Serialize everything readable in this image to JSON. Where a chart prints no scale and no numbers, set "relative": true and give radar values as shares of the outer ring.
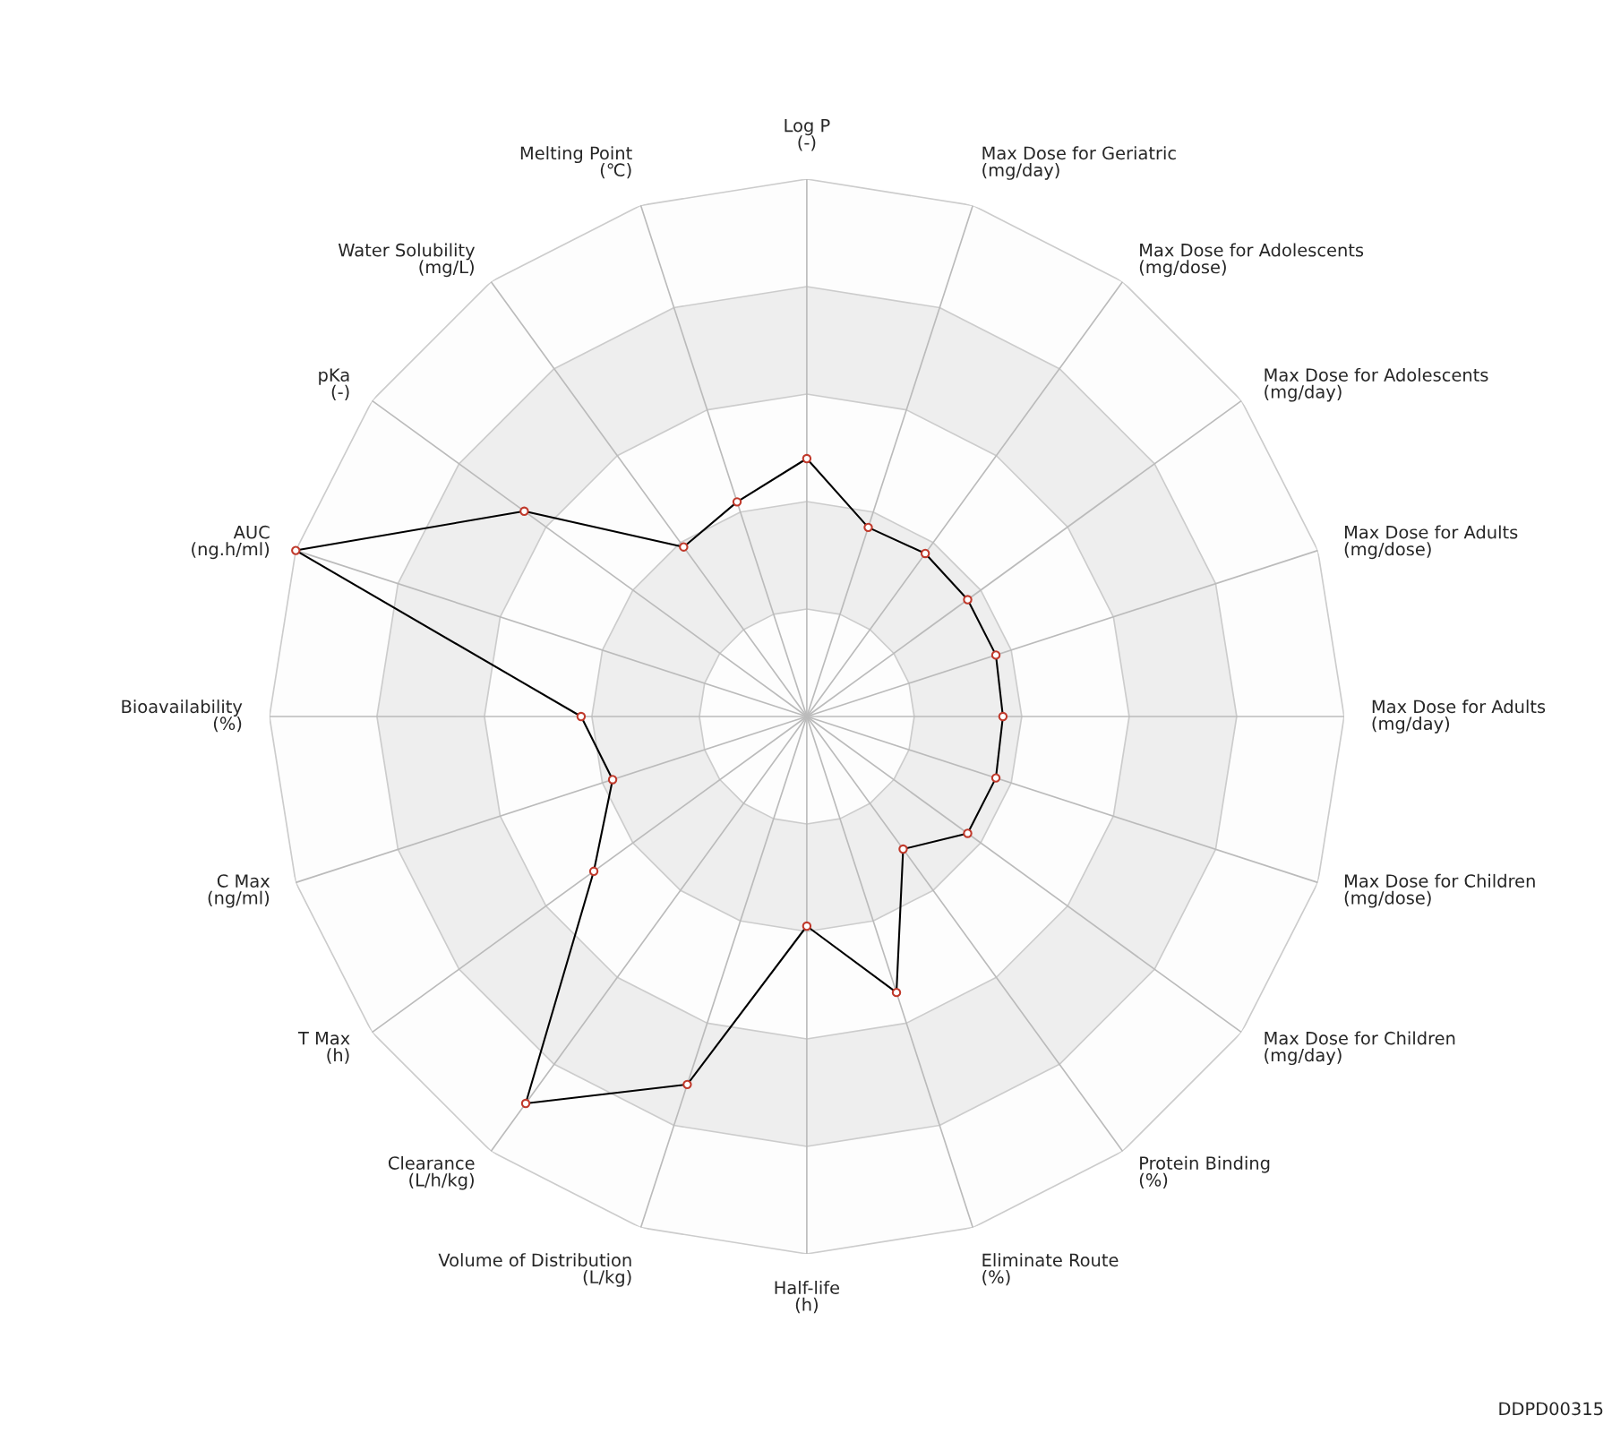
{
  "chart_data": {
    "type": "radar",
    "relative": true,
    "grid": true,
    "marker": "circle",
    "categories": [
      "Log P\n(-)",
      "Max Dose for Geriatric\n(mg/day)",
      "Max Dose for Adolescents\n(mg/dose)",
      "Max Dose for Adolescents\n(mg/day)",
      "Max Dose for Adults\n(mg/dose)",
      "Max Dose for Adults\n(mg/day)",
      "Max Dose for Children\n(mg/dose)",
      "Max Dose for Children\n(mg/day)",
      "Protein Binding\n(%)",
      "Eliminate Route\n(%)",
      "Half-life\n(h)",
      "Volume of Distribution\n(L/kg)",
      "Clearance\n(L/h/kg)",
      "T Max\n(h)",
      "C Max\n(ng/ml)",
      "Bioavailability\n(%)",
      "AUC\n(ng.h/ml)",
      "pKa\n(-)",
      "Water Solubility\n(mg/L)",
      "Melting Point\n(℃)"
    ],
    "series": [
      {
        "color": "#000000",
        "values": [
          0.48,
          0.37,
          0.375,
          0.37,
          0.37,
          0.365,
          0.37,
          0.37,
          0.305,
          0.54,
          0.39,
          0.72,
          0.89,
          0.49,
          0.38,
          0.42,
          1.0,
          0.65,
          0.39,
          0.42
        ]
      }
    ],
    "annotations": [
      "DDPD00315"
    ]
  }
}
